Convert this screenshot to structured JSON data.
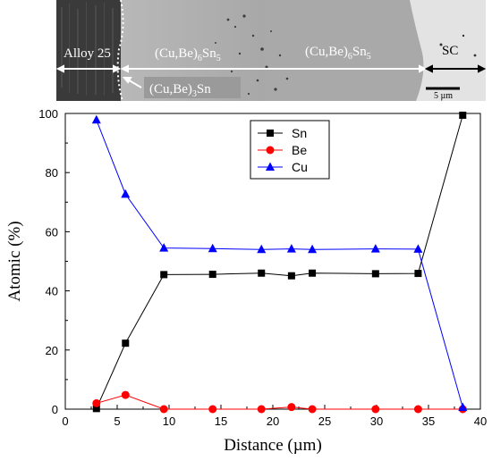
{
  "micrograph": {
    "labels": {
      "alloy": "Alloy 25",
      "phase_a": "(Cu,Be)",
      "phase_a_sub1": "6",
      "phase_a_mid": "Sn",
      "phase_a_sub2": "5",
      "phase_c": "(Cu,Be)",
      "phase_c_sub1": "6",
      "phase_c_mid": "Sn",
      "phase_c_sub2": "5",
      "phase_b": "(Cu,Be)",
      "phase_b_sub1": "3",
      "phase_b_mid": "Sn",
      "sc": "SC",
      "scale": "5 µm"
    }
  },
  "chart_data": {
    "type": "line",
    "xlabel": "Distance (µm)",
    "ylabel": "Atomic (%)",
    "xlim": [
      0,
      40
    ],
    "ylim": [
      0,
      100
    ],
    "xticks": [
      0,
      5,
      10,
      15,
      20,
      25,
      30,
      35,
      40
    ],
    "yticks": [
      0,
      20,
      40,
      60,
      80,
      100
    ],
    "grid": false,
    "legend_position": "top-center",
    "series": [
      {
        "name": "Sn",
        "color": "#000000",
        "marker": "square",
        "x": [
          3.0,
          5.8,
          9.5,
          14.2,
          18.9,
          21.8,
          23.8,
          29.9,
          34.0,
          38.3
        ],
        "y": [
          0.2,
          22.3,
          45.5,
          45.6,
          46.0,
          45.1,
          46.0,
          45.8,
          45.9,
          99.4
        ]
      },
      {
        "name": "Be",
        "color": "#ff0000",
        "marker": "circle",
        "x": [
          3.0,
          5.8,
          9.5,
          14.2,
          18.9,
          21.8,
          23.8,
          29.9,
          34.0,
          38.3
        ],
        "y": [
          2.0,
          4.8,
          0.0,
          0.0,
          0.0,
          0.7,
          0.0,
          0.0,
          0.0,
          0.0
        ]
      },
      {
        "name": "Cu",
        "color": "#0000ff",
        "marker": "triangle",
        "x": [
          3.0,
          5.8,
          9.5,
          14.2,
          18.9,
          21.8,
          23.8,
          29.9,
          34.0,
          38.3
        ],
        "y": [
          97.8,
          72.7,
          54.5,
          54.3,
          54.0,
          54.2,
          54.0,
          54.2,
          54.1,
          0.6
        ]
      }
    ]
  }
}
